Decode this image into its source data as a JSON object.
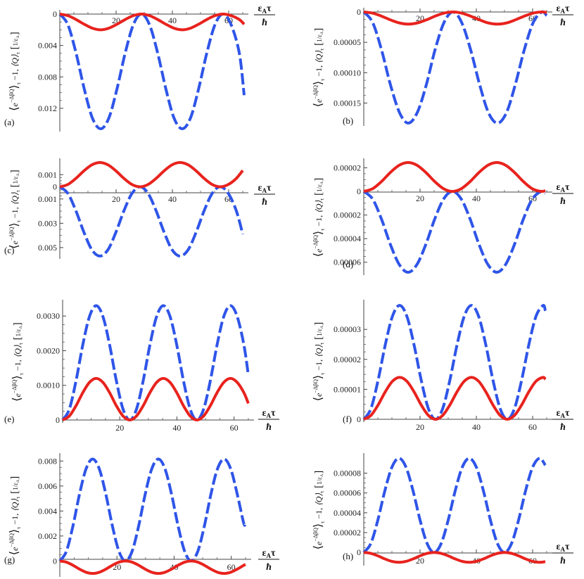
{
  "figure": {
    "ylabel": "⟨e^{−ΔβQ}⟩_τ −1,  ⟨Q⟩_τ [1/ε_A]",
    "ylabel_parts": {
      "bracket_open": "⟨",
      "base": "e",
      "exponent": "−ΔβQ",
      "bracket_close": "⟩",
      "subscript": "τ",
      "minus_one": "−1,",
      "q_avg": "⟨Q⟩",
      "q_sub": "τ",
      "unit_num": "1",
      "unit_den": "ε",
      "unit_den_sub": "A"
    },
    "xlabel_parts": {
      "num": "ε",
      "num_sub": "A",
      "num_tau": "τ",
      "den": "ħ"
    },
    "colors": {
      "blue": "#2f55e8",
      "red": "#e8231e",
      "axis": "#444444"
    }
  },
  "chart_data": [
    {
      "type": "line",
      "panel": "(a)",
      "x": [
        0,
        2.9,
        5.8,
        8.7,
        11.6,
        14.5,
        17.4,
        20.3,
        23.2,
        26.1,
        29,
        31.9,
        34.8,
        37.7,
        40.6,
        43.5,
        46.4,
        49.3,
        52.2,
        55.1,
        58,
        60.9,
        63.8,
        65.5
      ],
      "xlim": [
        0,
        66
      ],
      "ylim": [
        0.0146,
        0
      ],
      "y_inverted": true,
      "x_ticks": [
        20,
        40,
        60
      ],
      "x_tick_labels": [
        "20",
        "40",
        "60"
      ],
      "y_ticks": [
        0,
        0.004,
        0.008,
        0.012
      ],
      "y_tick_labels": [
        "0",
        "0.004",
        "0.008",
        "0.012"
      ],
      "series": [
        {
          "name": "blue-dashed",
          "style": "dashed",
          "values": [
            0,
            0.00138,
            0.00501,
            0.00955,
            0.01326,
            0.0146,
            0.01326,
            0.00955,
            0.00501,
            0.00138,
            0,
            0.00138,
            0.00501,
            0.00955,
            0.01326,
            0.0146,
            0.01326,
            0.00955,
            0.00501,
            0.00138,
            0,
            0.00138,
            0.00501,
            0.01033
          ]
        },
        {
          "name": "red-solid",
          "style": "solid",
          "values": [
            0,
            0.0002,
            0.0007,
            0.0013,
            0.0018,
            0.002,
            0.0018,
            0.0013,
            0.0007,
            0.0002,
            0,
            0.0002,
            0.0007,
            0.0013,
            0.0018,
            0.002,
            0.0018,
            0.0013,
            0.0007,
            0.0002,
            0,
            0.0002,
            0.0007,
            0.0013
          ]
        }
      ]
    },
    {
      "type": "line",
      "panel": "(b)",
      "x": [
        0,
        3.17,
        6.33,
        9.5,
        12.7,
        15.8,
        19,
        22.2,
        25.3,
        28.5,
        31.7,
        34.8,
        38,
        41.2,
        44.3,
        47.5,
        50.7,
        53.8,
        57,
        60.2,
        63.3,
        65
      ],
      "xlim": [
        0,
        66
      ],
      "ylim": [
        0.000183,
        0
      ],
      "y_inverted": true,
      "x_ticks": [
        20,
        40,
        60
      ],
      "x_tick_labels": [
        "20",
        "40",
        "60"
      ],
      "y_ticks": [
        0,
        5e-05,
        0.0001,
        0.00015
      ],
      "y_tick_labels": [
        "0",
        "0.00005",
        "0.00010",
        "0.00015"
      ],
      "series": [
        {
          "name": "blue-dashed",
          "style": "dashed",
          "values": [
            0,
            1.75e-05,
            6.28e-05,
            0.0001202,
            0.0001657,
            0.000183,
            0.0001657,
            0.0001202,
            6.28e-05,
            1.75e-05,
            0,
            1.75e-05,
            6.28e-05,
            0.0001202,
            0.0001657,
            0.000183,
            0.0001657,
            0.0001202,
            6.28e-05,
            1.75e-05,
            0,
            6e-06
          ]
        },
        {
          "name": "red-solid",
          "style": "solid",
          "values": [
            0,
            1.9e-06,
            6.9e-06,
            1.31e-05,
            1.81e-05,
            2e-05,
            1.81e-05,
            1.31e-05,
            6.9e-06,
            1.9e-06,
            0,
            1.9e-06,
            6.9e-06,
            1.31e-05,
            1.81e-05,
            2e-05,
            1.81e-05,
            1.31e-05,
            6.9e-06,
            1.9e-06,
            0,
            1e-06
          ]
        }
      ]
    },
    {
      "type": "line",
      "panel": "(c)",
      "x": [
        0,
        2.85,
        5.7,
        8.55,
        11.4,
        14.25,
        17.1,
        19.95,
        22.8,
        25.65,
        28.5,
        31.35,
        34.2,
        37.05,
        39.9,
        42.75,
        45.6,
        48.45,
        51.3,
        54.15,
        57,
        59.85,
        62.7,
        65
      ],
      "xlim": [
        0,
        66
      ],
      "ylim": [
        -0.0057,
        0.002
      ],
      "x_ticks": [
        20,
        40,
        60
      ],
      "x_tick_labels": [
        "20",
        "40",
        "60"
      ],
      "y_ticks": [
        0.001,
        0,
        -0.001,
        -0.003,
        -0.005
      ],
      "y_tick_labels": [
        "0.001",
        "0",
        "0.001",
        "0.003",
        "0.005"
      ],
      "series": [
        {
          "name": "blue-dashed",
          "style": "dashed",
          "values": [
            0,
            -0.00054,
            -0.00196,
            -0.00373,
            -0.00518,
            -0.0057,
            -0.00518,
            -0.00373,
            -0.00196,
            -0.00054,
            0,
            -0.00054,
            -0.00196,
            -0.00373,
            -0.00518,
            -0.0057,
            -0.00518,
            -0.00373,
            -0.00196,
            -0.00054,
            0,
            -0.00054,
            -0.00196,
            -0.0039
          ]
        },
        {
          "name": "red-solid",
          "style": "solid",
          "values": [
            0,
            0.00019,
            0.00069,
            0.00131,
            0.00181,
            0.002,
            0.00181,
            0.00131,
            0.00069,
            0.00019,
            0,
            0.00019,
            0.00069,
            0.00131,
            0.00181,
            0.002,
            0.00181,
            0.00131,
            0.00069,
            0.00019,
            0,
            0.00019,
            0.00069,
            0.00135
          ]
        }
      ]
    },
    {
      "type": "line",
      "panel": "(d)",
      "x": [
        0,
        3.15,
        6.3,
        9.45,
        12.6,
        15.75,
        18.9,
        22.05,
        25.2,
        28.35,
        31.5,
        34.65,
        37.8,
        40.95,
        44.1,
        47.25,
        50.4,
        53.55,
        56.7,
        59.85,
        63,
        64.5
      ],
      "xlim": [
        0,
        66
      ],
      "ylim": [
        -6.85e-05,
        2.45e-05
      ],
      "x_ticks": [
        20,
        40,
        60
      ],
      "x_tick_labels": [
        "20",
        "40",
        "60"
      ],
      "y_ticks": [
        2e-05,
        0,
        -2e-05,
        -4e-05,
        -6e-05
      ],
      "y_tick_labels": [
        "0.00002",
        "0",
        "0.00002",
        "0.00004",
        "0.00006"
      ],
      "series": [
        {
          "name": "blue-dashed",
          "style": "dashed",
          "values": [
            0,
            -6.5e-06,
            -2.35e-05,
            -4.49e-05,
            -6.19e-05,
            -6.85e-05,
            -6.19e-05,
            -4.49e-05,
            -2.35e-05,
            -6.5e-06,
            0,
            -6.5e-06,
            -2.35e-05,
            -4.49e-05,
            -6.19e-05,
            -6.85e-05,
            -6.19e-05,
            -4.49e-05,
            -2.35e-05,
            -6.5e-06,
            0,
            -1.5e-06
          ]
        },
        {
          "name": "red-solid",
          "style": "solid",
          "values": [
            0,
            2.3e-06,
            8.4e-06,
            1.61e-05,
            2.22e-05,
            2.45e-05,
            2.22e-05,
            1.61e-05,
            8.4e-06,
            2.3e-06,
            0,
            2.3e-06,
            8.4e-06,
            1.61e-05,
            2.22e-05,
            2.45e-05,
            2.22e-05,
            1.61e-05,
            8.4e-06,
            2.3e-06,
            0,
            6e-07
          ]
        }
      ]
    },
    {
      "type": "line",
      "panel": "(e)",
      "x": [
        0,
        2.35,
        4.7,
        7.05,
        9.4,
        11.75,
        14.1,
        16.45,
        18.8,
        21.15,
        23.5,
        25.85,
        28.2,
        30.55,
        32.9,
        35.25,
        37.6,
        39.95,
        42.3,
        44.65,
        47,
        49.35,
        51.7,
        54.05,
        56.4,
        58.75,
        61.1,
        63.45,
        65
      ],
      "xlim": [
        0,
        66
      ],
      "ylim": [
        0,
        0.00335
      ],
      "x_ticks": [
        20,
        40,
        60
      ],
      "x_tick_labels": [
        "20",
        "40",
        "60"
      ],
      "y_ticks": [
        0,
        0.001,
        0.002,
        0.003
      ],
      "y_tick_labels": [
        "0",
        "0.0010",
        "0.0020",
        "0.0030"
      ],
      "series": [
        {
          "name": "blue-dashed",
          "style": "dashed",
          "values": [
            0,
            0.000313,
            0.001134,
            0.002166,
            0.002987,
            0.0033,
            0.002987,
            0.002166,
            0.001134,
            0.000313,
            0,
            0.000313,
            0.001134,
            0.002166,
            0.002987,
            0.0033,
            0.002987,
            0.002166,
            0.001134,
            0.000313,
            0,
            0.000313,
            0.001134,
            0.002166,
            0.002987,
            0.0033,
            0.002987,
            0.002166,
            0.0013
          ]
        },
        {
          "name": "red-solid",
          "style": "solid",
          "values": [
            0,
            0.000114,
            0.000412,
            0.000788,
            0.001086,
            0.0012,
            0.001086,
            0.000788,
            0.000412,
            0.000114,
            0,
            0.000114,
            0.000412,
            0.000788,
            0.001086,
            0.0012,
            0.001086,
            0.000788,
            0.000412,
            0.000114,
            0,
            0.000114,
            0.000412,
            0.000788,
            0.001086,
            0.0012,
            0.001086,
            0.000788,
            0.00048
          ]
        }
      ]
    },
    {
      "type": "line",
      "panel": "(f)",
      "x": [
        0,
        2.55,
        5.1,
        7.65,
        10.2,
        12.75,
        15.3,
        17.85,
        20.4,
        22.95,
        25.5,
        28.05,
        30.6,
        33.15,
        35.7,
        38.25,
        40.8,
        43.35,
        45.9,
        48.45,
        51,
        53.55,
        56.1,
        58.65,
        61.2,
        63.75,
        64.5
      ],
      "xlim": [
        0,
        66
      ],
      "ylim": [
        0,
        3.85e-05
      ],
      "x_ticks": [
        20,
        40,
        60
      ],
      "x_tick_labels": [
        "20",
        "40",
        "60"
      ],
      "y_ticks": [
        0,
        1e-05,
        2e-05,
        3e-05
      ],
      "y_tick_labels": [
        "0",
        "0.00001",
        "0.00002",
        "0.00003"
      ],
      "series": [
        {
          "name": "blue-dashed",
          "style": "dashed",
          "values": [
            0,
            3.6e-06,
            1.31e-05,
            2.49e-05,
            3.44e-05,
            3.8e-05,
            3.44e-05,
            2.49e-05,
            1.31e-05,
            3.6e-06,
            0,
            3.6e-06,
            1.31e-05,
            2.49e-05,
            3.44e-05,
            3.8e-05,
            3.44e-05,
            2.49e-05,
            1.31e-05,
            3.6e-06,
            0,
            3.6e-06,
            1.31e-05,
            2.49e-05,
            3.44e-05,
            3.8e-05,
            3.62e-05
          ]
        },
        {
          "name": "red-solid",
          "style": "solid",
          "values": [
            0,
            1.3e-06,
            4.8e-06,
            9.2e-06,
            1.27e-05,
            1.4e-05,
            1.27e-05,
            9.2e-06,
            4.8e-06,
            1.3e-06,
            0,
            1.3e-06,
            4.8e-06,
            9.2e-06,
            1.27e-05,
            1.4e-05,
            1.27e-05,
            9.2e-06,
            4.8e-06,
            1.3e-06,
            0,
            1.3e-06,
            4.8e-06,
            9.2e-06,
            1.27e-05,
            1.4e-05,
            1.33e-05
          ]
        }
      ]
    },
    {
      "type": "line",
      "panel": "(g)",
      "x": [
        0,
        2.3,
        4.6,
        6.9,
        9.2,
        11.5,
        13.8,
        16.1,
        18.4,
        20.7,
        23,
        25.3,
        27.6,
        29.9,
        32.2,
        34.5,
        36.8,
        39.1,
        41.4,
        43.7,
        46,
        48.3,
        50.6,
        52.9,
        55.2,
        57.5,
        59.8,
        62.1,
        64.4,
        65
      ],
      "xlim": [
        0,
        66
      ],
      "ylim": [
        -0.00105,
        0.0083
      ],
      "x_ticks": [
        20,
        40,
        60
      ],
      "x_tick_labels": [
        "20",
        "40",
        "60"
      ],
      "y_ticks": [
        0,
        0.002,
        0.004,
        0.006,
        0.008
      ],
      "y_tick_labels": [
        "0",
        "0.002",
        "0.004",
        "0.006",
        "0.008"
      ],
      "series": [
        {
          "name": "blue-dashed",
          "style": "dashed",
          "values": [
            0,
            0.000774,
            0.002803,
            0.005354,
            0.007383,
            0.00816,
            0.007383,
            0.005354,
            0.002803,
            0.000774,
            0,
            0.000774,
            0.002803,
            0.005354,
            0.007383,
            0.00816,
            0.007383,
            0.005354,
            0.002803,
            0.000774,
            0,
            0.000774,
            0.002803,
            0.005354,
            0.007383,
            0.00816,
            0.007383,
            0.005354,
            0.003,
            0.0031
          ]
        },
        {
          "name": "red-solid",
          "style": "solid",
          "values": [
            0,
            -9.5e-05,
            -0.000344,
            -0.000656,
            -0.000905,
            -0.001,
            -0.000905,
            -0.000656,
            -0.000344,
            -9.5e-05,
            0,
            -9.5e-05,
            -0.000344,
            -0.000656,
            -0.000905,
            -0.001,
            -0.000905,
            -0.000656,
            -0.000344,
            -9.5e-05,
            0,
            -9.5e-05,
            -0.000344,
            -0.000656,
            -0.000905,
            -0.001,
            -0.000905,
            -0.000656,
            -0.000344,
            -0.00028
          ]
        }
      ]
    },
    {
      "type": "line",
      "panel": "(h)",
      "x": [
        0,
        2.5,
        5,
        7.5,
        10,
        12.5,
        15,
        17.5,
        20,
        22.5,
        25,
        27.5,
        30,
        32.5,
        35,
        37.5,
        40,
        42.5,
        45,
        47.5,
        50,
        52.5,
        55,
        57.5,
        60,
        62.5,
        64.5
      ],
      "xlim": [
        0,
        66
      ],
      "ylim": [
        -1.05e-05,
        9.6e-05
      ],
      "x_ticks": [
        20,
        40,
        60
      ],
      "x_tick_labels": [
        "20",
        "40",
        "60"
      ],
      "y_ticks": [
        0,
        2e-05,
        4e-05,
        6e-05,
        8e-05
      ],
      "y_tick_labels": [
        "0",
        "0.00002",
        "0.00004",
        "0.00006",
        "0.00008"
      ],
      "series": [
        {
          "name": "blue-dashed",
          "style": "dashed",
          "values": [
            0,
            9e-06,
            3.26e-05,
            6.23e-05,
            8.6e-05,
            9.5e-05,
            8.6e-05,
            6.23e-05,
            3.26e-05,
            9e-06,
            0,
            9e-06,
            3.26e-05,
            6.23e-05,
            8.6e-05,
            9.5e-05,
            8.6e-05,
            6.23e-05,
            3.26e-05,
            9e-06,
            0,
            9e-06,
            3.26e-05,
            6.23e-05,
            8.6e-05,
            9.5e-05,
            8.8e-05
          ]
        },
        {
          "name": "red-solid",
          "style": "solid",
          "values": [
            0,
            -9.5e-07,
            -3.44e-06,
            -6.56e-06,
            -9.05e-06,
            -1e-05,
            -9.05e-06,
            -6.56e-06,
            -3.44e-06,
            -9.5e-07,
            0,
            -9.5e-07,
            -3.44e-06,
            -6.56e-06,
            -9.05e-06,
            -1e-05,
            -9.05e-06,
            -6.56e-06,
            -3.44e-06,
            -9.5e-07,
            0,
            -9.5e-07,
            -3.44e-06,
            -6.56e-06,
            -9.05e-06,
            -1e-05,
            -9.3e-06
          ]
        }
      ]
    }
  ]
}
